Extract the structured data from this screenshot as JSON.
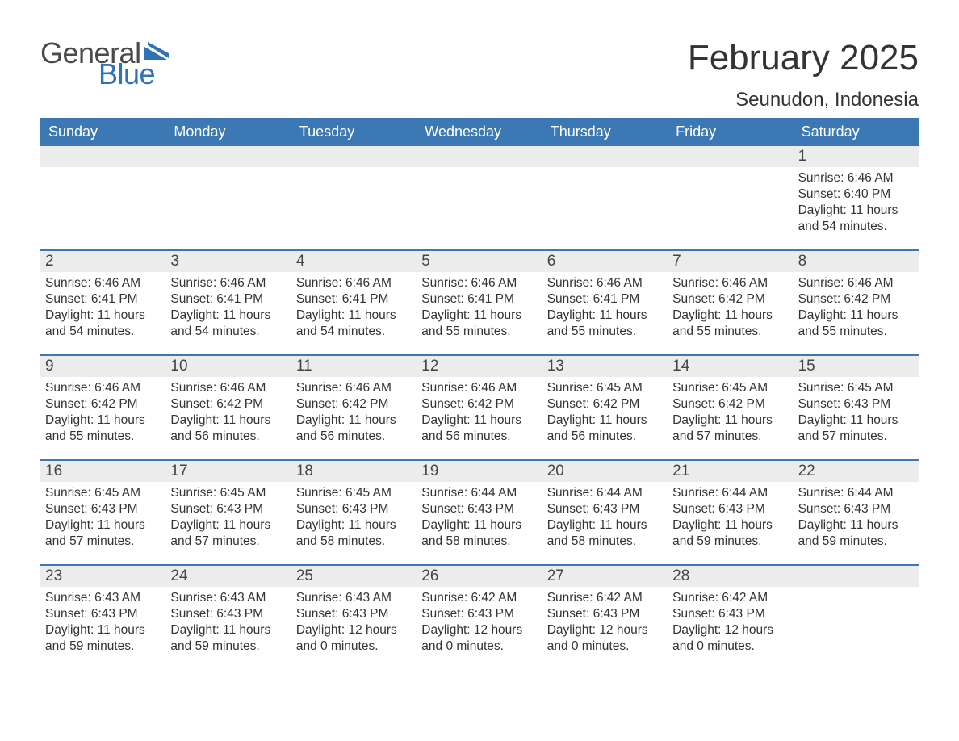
{
  "logo": {
    "text1": "General",
    "text2": "Blue",
    "flag_color": "#2f73b6"
  },
  "title": "February 2025",
  "location": "Seunudon, Indonesia",
  "colors": {
    "header_bg": "#3c78b4",
    "header_text": "#ffffff",
    "band_bg": "#ececec",
    "rule": "#3c78b4",
    "text": "#333333"
  },
  "day_names": [
    "Sunday",
    "Monday",
    "Tuesday",
    "Wednesday",
    "Thursday",
    "Friday",
    "Saturday"
  ],
  "weeks": [
    [
      {
        "day": "",
        "sunrise": "",
        "sunset": "",
        "daylight": ""
      },
      {
        "day": "",
        "sunrise": "",
        "sunset": "",
        "daylight": ""
      },
      {
        "day": "",
        "sunrise": "",
        "sunset": "",
        "daylight": ""
      },
      {
        "day": "",
        "sunrise": "",
        "sunset": "",
        "daylight": ""
      },
      {
        "day": "",
        "sunrise": "",
        "sunset": "",
        "daylight": ""
      },
      {
        "day": "",
        "sunrise": "",
        "sunset": "",
        "daylight": ""
      },
      {
        "day": "1",
        "sunrise": "Sunrise: 6:46 AM",
        "sunset": "Sunset: 6:40 PM",
        "daylight": "Daylight: 11 hours and 54 minutes."
      }
    ],
    [
      {
        "day": "2",
        "sunrise": "Sunrise: 6:46 AM",
        "sunset": "Sunset: 6:41 PM",
        "daylight": "Daylight: 11 hours and 54 minutes."
      },
      {
        "day": "3",
        "sunrise": "Sunrise: 6:46 AM",
        "sunset": "Sunset: 6:41 PM",
        "daylight": "Daylight: 11 hours and 54 minutes."
      },
      {
        "day": "4",
        "sunrise": "Sunrise: 6:46 AM",
        "sunset": "Sunset: 6:41 PM",
        "daylight": "Daylight: 11 hours and 54 minutes."
      },
      {
        "day": "5",
        "sunrise": "Sunrise: 6:46 AM",
        "sunset": "Sunset: 6:41 PM",
        "daylight": "Daylight: 11 hours and 55 minutes."
      },
      {
        "day": "6",
        "sunrise": "Sunrise: 6:46 AM",
        "sunset": "Sunset: 6:41 PM",
        "daylight": "Daylight: 11 hours and 55 minutes."
      },
      {
        "day": "7",
        "sunrise": "Sunrise: 6:46 AM",
        "sunset": "Sunset: 6:42 PM",
        "daylight": "Daylight: 11 hours and 55 minutes."
      },
      {
        "day": "8",
        "sunrise": "Sunrise: 6:46 AM",
        "sunset": "Sunset: 6:42 PM",
        "daylight": "Daylight: 11 hours and 55 minutes."
      }
    ],
    [
      {
        "day": "9",
        "sunrise": "Sunrise: 6:46 AM",
        "sunset": "Sunset: 6:42 PM",
        "daylight": "Daylight: 11 hours and 55 minutes."
      },
      {
        "day": "10",
        "sunrise": "Sunrise: 6:46 AM",
        "sunset": "Sunset: 6:42 PM",
        "daylight": "Daylight: 11 hours and 56 minutes."
      },
      {
        "day": "11",
        "sunrise": "Sunrise: 6:46 AM",
        "sunset": "Sunset: 6:42 PM",
        "daylight": "Daylight: 11 hours and 56 minutes."
      },
      {
        "day": "12",
        "sunrise": "Sunrise: 6:46 AM",
        "sunset": "Sunset: 6:42 PM",
        "daylight": "Daylight: 11 hours and 56 minutes."
      },
      {
        "day": "13",
        "sunrise": "Sunrise: 6:45 AM",
        "sunset": "Sunset: 6:42 PM",
        "daylight": "Daylight: 11 hours and 56 minutes."
      },
      {
        "day": "14",
        "sunrise": "Sunrise: 6:45 AM",
        "sunset": "Sunset: 6:42 PM",
        "daylight": "Daylight: 11 hours and 57 minutes."
      },
      {
        "day": "15",
        "sunrise": "Sunrise: 6:45 AM",
        "sunset": "Sunset: 6:43 PM",
        "daylight": "Daylight: 11 hours and 57 minutes."
      }
    ],
    [
      {
        "day": "16",
        "sunrise": "Sunrise: 6:45 AM",
        "sunset": "Sunset: 6:43 PM",
        "daylight": "Daylight: 11 hours and 57 minutes."
      },
      {
        "day": "17",
        "sunrise": "Sunrise: 6:45 AM",
        "sunset": "Sunset: 6:43 PM",
        "daylight": "Daylight: 11 hours and 57 minutes."
      },
      {
        "day": "18",
        "sunrise": "Sunrise: 6:45 AM",
        "sunset": "Sunset: 6:43 PM",
        "daylight": "Daylight: 11 hours and 58 minutes."
      },
      {
        "day": "19",
        "sunrise": "Sunrise: 6:44 AM",
        "sunset": "Sunset: 6:43 PM",
        "daylight": "Daylight: 11 hours and 58 minutes."
      },
      {
        "day": "20",
        "sunrise": "Sunrise: 6:44 AM",
        "sunset": "Sunset: 6:43 PM",
        "daylight": "Daylight: 11 hours and 58 minutes."
      },
      {
        "day": "21",
        "sunrise": "Sunrise: 6:44 AM",
        "sunset": "Sunset: 6:43 PM",
        "daylight": "Daylight: 11 hours and 59 minutes."
      },
      {
        "day": "22",
        "sunrise": "Sunrise: 6:44 AM",
        "sunset": "Sunset: 6:43 PM",
        "daylight": "Daylight: 11 hours and 59 minutes."
      }
    ],
    [
      {
        "day": "23",
        "sunrise": "Sunrise: 6:43 AM",
        "sunset": "Sunset: 6:43 PM",
        "daylight": "Daylight: 11 hours and 59 minutes."
      },
      {
        "day": "24",
        "sunrise": "Sunrise: 6:43 AM",
        "sunset": "Sunset: 6:43 PM",
        "daylight": "Daylight: 11 hours and 59 minutes."
      },
      {
        "day": "25",
        "sunrise": "Sunrise: 6:43 AM",
        "sunset": "Sunset: 6:43 PM",
        "daylight": "Daylight: 12 hours and 0 minutes."
      },
      {
        "day": "26",
        "sunrise": "Sunrise: 6:42 AM",
        "sunset": "Sunset: 6:43 PM",
        "daylight": "Daylight: 12 hours and 0 minutes."
      },
      {
        "day": "27",
        "sunrise": "Sunrise: 6:42 AM",
        "sunset": "Sunset: 6:43 PM",
        "daylight": "Daylight: 12 hours and 0 minutes."
      },
      {
        "day": "28",
        "sunrise": "Sunrise: 6:42 AM",
        "sunset": "Sunset: 6:43 PM",
        "daylight": "Daylight: 12 hours and 0 minutes."
      },
      {
        "day": "",
        "sunrise": "",
        "sunset": "",
        "daylight": ""
      }
    ]
  ]
}
